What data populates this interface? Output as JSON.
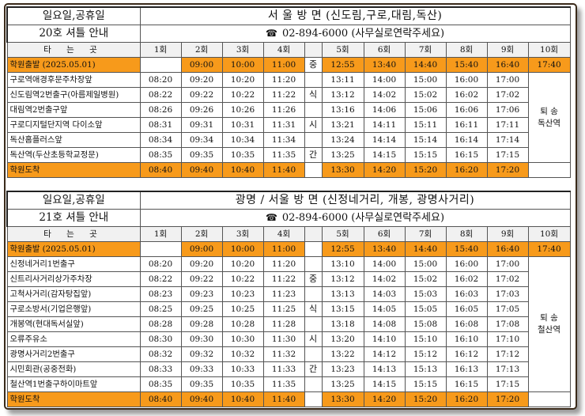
{
  "sec1": {
    "title": "일요일,공휴일",
    "subtitle": "20호 셔틀 안내",
    "route": "서 울 방 면 (신도림,구로,대림,독산)",
    "phone": "02-894-6000  (사무실로연락주세요)",
    "phone_icon": "telephone-icon",
    "header": [
      "타 는 곳",
      "1회",
      "2회",
      "3회",
      "4회",
      "",
      "5회",
      "6회",
      "7회",
      "8회",
      "9회",
      "10회"
    ],
    "departure": {
      "stop": "학원출발 (2025.05.01)",
      "times": [
        "",
        "09:00",
        "10:00",
        "11:00",
        "중",
        "12:55",
        "13:40",
        "14:40",
        "15:40",
        "16:40",
        "17:40"
      ]
    },
    "rows": [
      {
        "stop": "구로역애경후문주차장앞",
        "times": [
          "08:20",
          "09:20",
          "10:20",
          "11:20",
          "",
          "13:11",
          "14:00",
          "15:00",
          "16:00",
          "17:00"
        ]
      },
      {
        "stop": "신도림역2번출구(아름제일병원)",
        "times": [
          "08:22",
          "09:22",
          "10:22",
          "11:22",
          "식",
          "13:12",
          "14:02",
          "15:02",
          "16:02",
          "17:02"
        ]
      },
      {
        "stop": "대림역2번출구앞",
        "times": [
          "08:26",
          "09:26",
          "10:26",
          "11:26",
          "",
          "13:16",
          "14:06",
          "15:06",
          "16:06",
          "17:06"
        ]
      },
      {
        "stop": "구로디지털단지역 다이소앞",
        "times": [
          "08:31",
          "09:31",
          "10:31",
          "11:31",
          "시",
          "13:21",
          "14:11",
          "15:11",
          "16:11",
          "17:11"
        ]
      },
      {
        "stop": "독산홈플러스앞",
        "times": [
          "08:34",
          "09:34",
          "10:34",
          "11:34",
          "",
          "13:24",
          "14:14",
          "15:14",
          "16:14",
          "17:14"
        ]
      },
      {
        "stop": "독산역(두산초등학교정문)",
        "times": [
          "08:35",
          "09:35",
          "10:35",
          "11:35",
          "간",
          "13:25",
          "14:15",
          "15:15",
          "16:15",
          "17:15"
        ]
      }
    ],
    "arrival": {
      "stop": "학원도착",
      "times": [
        "08:40",
        "09:40",
        "10:40",
        "11:40",
        "",
        "13:30",
        "14:20",
        "15:20",
        "16:20",
        "17:20"
      ]
    },
    "return_line1": "퇴 송",
    "return_line2": "독산역"
  },
  "sec2": {
    "title": "일요일,공휴일",
    "subtitle": "21호 셔틀 안내",
    "route": "광명 / 서울 방 면 (신정네거리, 개봉, 광명사거리)",
    "phone": "02-894-6000  (사무실로연락주세요)",
    "phone_icon": "telephone-icon",
    "header": [
      "타 는 곳",
      "1회",
      "2회",
      "3회",
      "4회",
      "",
      "5회",
      "6회",
      "7회",
      "8회",
      "9회",
      "10회"
    ],
    "departure": {
      "stop": "학원출발 (2025.05.01)",
      "times": [
        "",
        "09:00",
        "10:00",
        "11:00",
        "",
        "12:55",
        "13:40",
        "14:40",
        "15:40",
        "16:40",
        "17:40"
      ]
    },
    "rows": [
      {
        "stop": "신정네거리1번출구",
        "times": [
          "08:20",
          "09:20",
          "10:20",
          "11:20",
          "",
          "13:10",
          "14:00",
          "15:00",
          "16:00",
          "17:00"
        ]
      },
      {
        "stop": "신트리사거리상가주차장",
        "times": [
          "08:22",
          "09:22",
          "10:22",
          "11:22",
          "중",
          "13:12",
          "14:02",
          "15:02",
          "16:02",
          "17:02"
        ]
      },
      {
        "stop": "고척사거리(감자탕집앞)",
        "times": [
          "08:23",
          "09:23",
          "10:23",
          "11:23",
          "",
          "13:13",
          "14:03",
          "15:03",
          "16:03",
          "17:03"
        ]
      },
      {
        "stop": "구로소방서(기업은행앞)",
        "times": [
          "08:25",
          "09:25",
          "10:25",
          "11:25",
          "식",
          "13:15",
          "14:05",
          "15:05",
          "16:05",
          "17:05"
        ]
      },
      {
        "stop": "개봉역(현대독서실앞)",
        "times": [
          "08:28",
          "09:28",
          "10:28",
          "11:28",
          "",
          "13:18",
          "14:08",
          "15:08",
          "16:08",
          "17:08"
        ]
      },
      {
        "stop": "오류주유소",
        "times": [
          "08:30",
          "09:30",
          "10:30",
          "11:30",
          "시",
          "13:20",
          "14:10",
          "15:10",
          "16:10",
          "17:10"
        ]
      },
      {
        "stop": "광명사거리2번출구",
        "times": [
          "08:32",
          "09:32",
          "10:32",
          "11:32",
          "",
          "13:22",
          "14:12",
          "15:12",
          "16:12",
          "17:12"
        ]
      },
      {
        "stop": "시민회관(공중전화)",
        "times": [
          "08:33",
          "09:33",
          "10:33",
          "11:33",
          "간",
          "13:23",
          "14:13",
          "15:13",
          "16:13",
          "17:13"
        ]
      },
      {
        "stop": "철산역1번출구하이마트앞",
        "times": [
          "08:35",
          "09:35",
          "10:35",
          "11:35",
          "",
          "13:25",
          "14:15",
          "15:15",
          "16:15",
          "17:15"
        ]
      }
    ],
    "arrival": {
      "stop": "학원도착",
      "times": [
        "08:40",
        "09:40",
        "10:40",
        "11:40",
        "",
        "13:30",
        "14:20",
        "15:20",
        "16:20",
        "17:20"
      ]
    },
    "return_line1": "퇴 송",
    "return_line2": "철산역"
  },
  "colors": {
    "highlight": "#f79a1b",
    "border": "#555555",
    "header_bg": "#f1f1f1"
  }
}
